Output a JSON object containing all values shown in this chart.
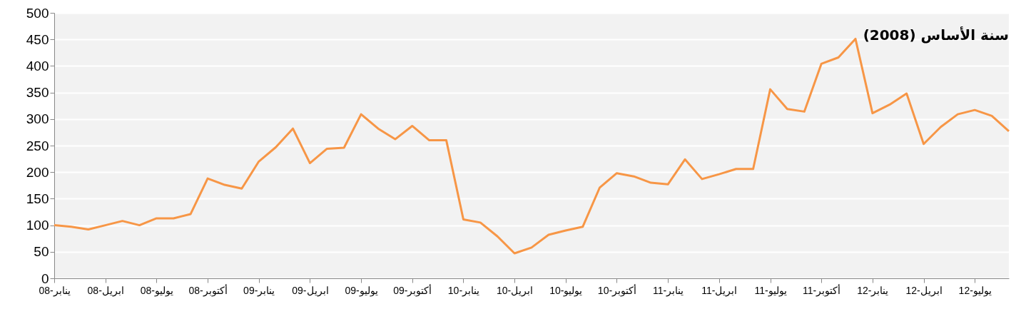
{
  "chart_data": {
    "type": "line",
    "categories": [
      "ينابر-08",
      null,
      null,
      "ابريل-08",
      null,
      null,
      "يوليو-08",
      null,
      null,
      "أكتوبر-08",
      null,
      null,
      "ينابر-09",
      null,
      null,
      "ابريل-09",
      null,
      null,
      "يوليو-09",
      null,
      null,
      "أكتوبر-09",
      null,
      null,
      "ينابر-10",
      null,
      null,
      "ابريل-10",
      null,
      null,
      "يوليو-10",
      null,
      null,
      "أكتوبر-10",
      null,
      null,
      "ينابر-11",
      null,
      null,
      "ابريل-11",
      null,
      null,
      "يوليو-11",
      null,
      null,
      "أكتوبر-11",
      null,
      null,
      "ينابر-12",
      null,
      null,
      "ابريل-12",
      null,
      null,
      "يوليو-12",
      null,
      null
    ],
    "values": [
      100,
      97,
      92,
      100,
      108,
      100,
      113,
      113,
      121,
      188,
      176,
      169,
      220,
      247,
      282,
      217,
      244,
      246,
      309,
      282,
      262,
      287,
      260,
      260,
      111,
      105,
      79,
      47,
      58,
      82,
      90,
      97,
      171,
      198,
      192,
      180,
      177,
      224,
      187,
      196,
      206,
      206,
      356,
      319,
      314,
      404,
      416,
      451,
      311,
      327,
      348,
      253,
      285,
      309,
      317,
      306,
      277
    ],
    "color": "#f79646",
    "ylim": [
      0,
      500
    ],
    "yticks": [
      0,
      50,
      100,
      150,
      200,
      250,
      300,
      350,
      400,
      450,
      500
    ],
    "grid": "y",
    "annotations": [
      "سنة الأساس (2008)"
    ]
  }
}
